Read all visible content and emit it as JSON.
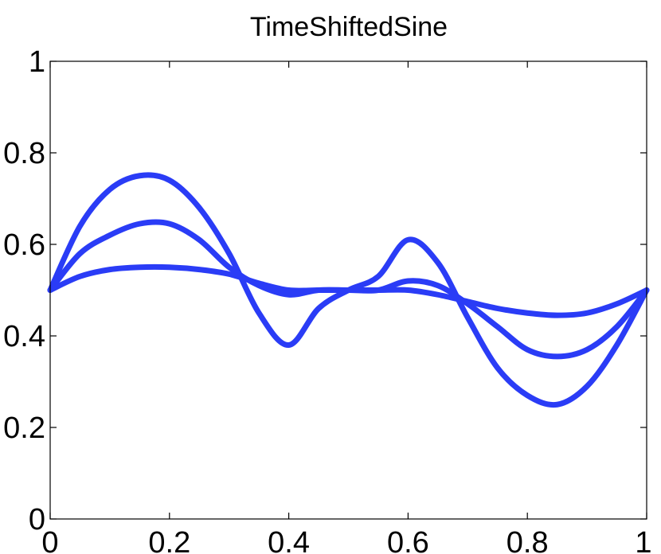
{
  "chart_data": {
    "type": "line",
    "title": "TimeShiftedSine",
    "xlabel": "",
    "ylabel": "",
    "xlim": [
      0,
      1
    ],
    "ylim": [
      0,
      1
    ],
    "x_ticks": [
      "0",
      "0.2",
      "0.4",
      "0.6",
      "0.8",
      "1"
    ],
    "y_ticks": [
      "0",
      "0.2",
      "0.4",
      "0.6",
      "0.8",
      "1"
    ],
    "grid": false,
    "legend": "none",
    "series_color": "#2a3cf6",
    "x": [
      0.0,
      0.05,
      0.1,
      0.15,
      0.2,
      0.25,
      0.3,
      0.35,
      0.4,
      0.45,
      0.5,
      0.55,
      0.6,
      0.65,
      0.7,
      0.75,
      0.8,
      0.85,
      0.9,
      0.95,
      1.0
    ],
    "series": [
      {
        "values": [
          0.5,
          0.64,
          0.72,
          0.75,
          0.74,
          0.68,
          0.58,
          0.45,
          0.38,
          0.46,
          0.5,
          0.53,
          0.61,
          0.56,
          0.44,
          0.33,
          0.27,
          0.25,
          0.29,
          0.38,
          0.5
        ]
      },
      {
        "values": [
          0.5,
          0.58,
          0.62,
          0.645,
          0.645,
          0.61,
          0.55,
          0.51,
          0.49,
          0.5,
          0.5,
          0.5,
          0.52,
          0.51,
          0.47,
          0.42,
          0.37,
          0.355,
          0.37,
          0.42,
          0.5
        ]
      },
      {
        "values": [
          0.5,
          0.53,
          0.545,
          0.55,
          0.55,
          0.545,
          0.535,
          0.515,
          0.5,
          0.5,
          0.5,
          0.5,
          0.5,
          0.49,
          0.475,
          0.46,
          0.45,
          0.445,
          0.45,
          0.47,
          0.5
        ]
      }
    ]
  }
}
